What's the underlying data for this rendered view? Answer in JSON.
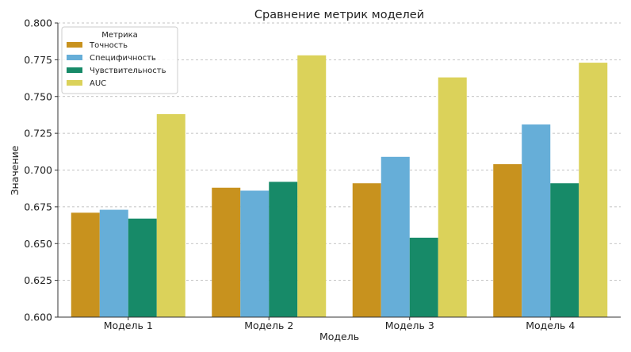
{
  "chart_data": {
    "type": "bar",
    "title": "Сравнение метрик моделей",
    "xlabel": "Модель",
    "ylabel": "Значение",
    "categories": [
      "Модель 1",
      "Модель 2",
      "Модель 3",
      "Модель 4"
    ],
    "ylim": [
      0.6,
      0.8
    ],
    "yticks": [
      "0.600",
      "0.625",
      "0.650",
      "0.675",
      "0.700",
      "0.725",
      "0.750",
      "0.775",
      "0.800"
    ],
    "grid": true,
    "legend": {
      "title": "Метрика",
      "position": "top-left"
    },
    "series": [
      {
        "name": "Точность",
        "color": "#c8921e",
        "values": [
          0.671,
          0.688,
          0.691,
          0.704
        ]
      },
      {
        "name": "Специфичность",
        "color": "#66aed8",
        "values": [
          0.673,
          0.686,
          0.709,
          0.731
        ]
      },
      {
        "name": "Чувствительность",
        "color": "#178a68",
        "values": [
          0.667,
          0.692,
          0.654,
          0.691
        ]
      },
      {
        "name": "AUC",
        "color": "#dbd25a",
        "values": [
          0.738,
          0.778,
          0.763,
          0.773
        ]
      }
    ]
  }
}
